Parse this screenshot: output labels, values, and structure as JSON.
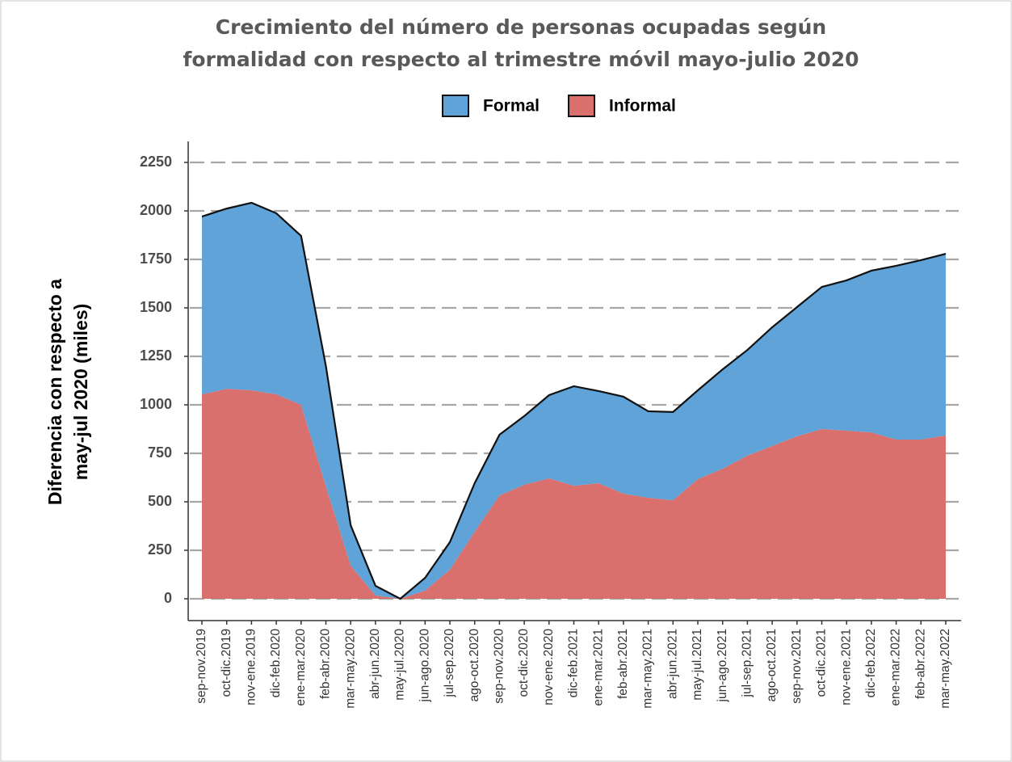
{
  "chart_data": {
    "type": "stacked-area",
    "title": [
      "Crecimiento del número de personas ocupadas según",
      "formalidad con respecto al trimestre móvil mayo-julio 2020"
    ],
    "y_label": [
      "Diferencia con respecto a",
      "may-jul 2020 (miles)"
    ],
    "categories": [
      "sep-nov.2019",
      "oct-dic.2019",
      "nov-ene.2019",
      "dic-feb.2020",
      "ene-mar.2020",
      "feb-abr.2020",
      "mar-may.2020",
      "abr-jun.2020",
      "may-jul.2020",
      "jun-ago.2020",
      "jul-sep.2020",
      "ago-oct.2020",
      "sep-nov.2020",
      "oct-dic.2020",
      "nov-ene.2020",
      "dic-feb.2021",
      "ene-mar.2021",
      "feb-abr.2021",
      "mar-may.2021",
      "abr-jun.2021",
      "may-jul.2021",
      "jun-ago.2021",
      "jul-sep.2021",
      "ago-oct.2021",
      "sep-nov.2021",
      "oct-dic.2021",
      "nov-ene.2021",
      "dic-feb.2022",
      "ene-mar.2022",
      "feb-abr.2022",
      "mar-may.2022"
    ],
    "series": [
      {
        "name": "Informal",
        "color": "#d9706e",
        "values": [
          1054,
          1083,
          1075,
          1054,
          1000,
          580,
          171,
          17,
          0,
          42,
          150,
          346,
          533,
          588,
          621,
          583,
          596,
          542,
          521,
          508,
          617,
          671,
          738,
          788,
          838,
          875,
          867,
          858,
          821,
          821,
          842
        ]
      },
      {
        "name": "Formal",
        "color": "#5fa3d8",
        "values": [
          917,
          929,
          967,
          934,
          871,
          620,
          208,
          50,
          0,
          66,
          142,
          250,
          313,
          354,
          429,
          513,
          475,
          500,
          446,
          455,
          458,
          512,
          545,
          612,
          666,
          733,
          775,
          834,
          896,
          925,
          937
        ]
      }
    ],
    "ylim": [
      0,
      2350
    ],
    "yticks": [
      0,
      250,
      500,
      750,
      1000,
      1250,
      1500,
      1750,
      2000,
      2250
    ],
    "grid": true,
    "legend": "top"
  }
}
